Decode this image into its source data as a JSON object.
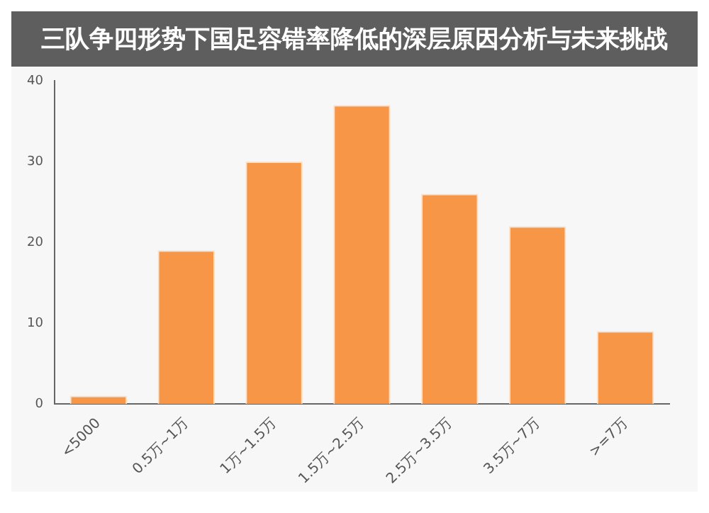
{
  "chart_data": {
    "type": "bar",
    "title": "三队争四形势下国足容错率降低的深层原因分析与未来挑战",
    "categories": [
      "<5000",
      "0.5万~1万",
      "1万~1.5万",
      "1.5万~2.5万",
      "2.5万~3.5万",
      "3.5万~7万",
      ">=7万"
    ],
    "values": [
      1,
      19,
      30,
      37,
      26,
      22,
      9
    ],
    "color": "#f79646",
    "ylim": [
      0,
      40
    ],
    "yticks": [
      0,
      10,
      20,
      30,
      40
    ],
    "grid": false
  }
}
